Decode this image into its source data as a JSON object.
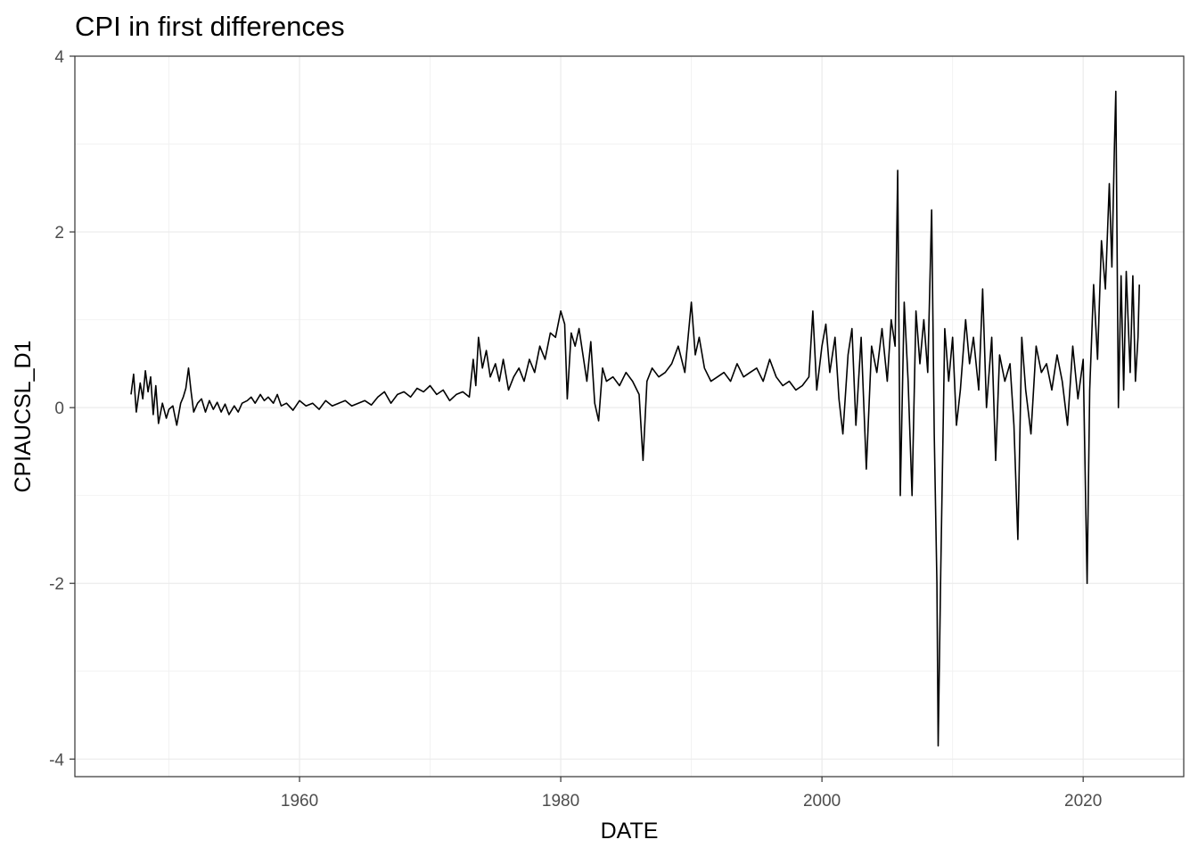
{
  "chart_data": {
    "type": "line",
    "title": "CPI in first differences",
    "xlabel": "DATE",
    "ylabel": "CPIAUCSL_D1",
    "xlim": [
      1942.8,
      2027.7
    ],
    "ylim": [
      -4.2,
      4.0
    ],
    "x_ticks": [
      1960,
      1980,
      2000,
      2020
    ],
    "x_tick_labels": [
      "1960",
      "1980",
      "2000",
      "2020"
    ],
    "y_ticks": [
      -4,
      -2,
      0,
      2,
      4
    ],
    "y_tick_labels": [
      "-4",
      "-2",
      "0",
      "2",
      "4"
    ],
    "grid": true,
    "legend": "none",
    "line_color": "#000000",
    "series": [
      {
        "points": [
          [
            1947.1,
            0.15
          ],
          [
            1947.3,
            0.38
          ],
          [
            1947.5,
            -0.05
          ],
          [
            1947.8,
            0.28
          ],
          [
            1948.0,
            0.1
          ],
          [
            1948.2,
            0.42
          ],
          [
            1948.4,
            0.18
          ],
          [
            1948.6,
            0.35
          ],
          [
            1948.8,
            -0.08
          ],
          [
            1949.0,
            0.25
          ],
          [
            1949.2,
            -0.18
          ],
          [
            1949.5,
            0.05
          ],
          [
            1949.8,
            -0.12
          ],
          [
            1950.0,
            -0.02
          ],
          [
            1950.3,
            0.02
          ],
          [
            1950.6,
            -0.2
          ],
          [
            1950.9,
            0.05
          ],
          [
            1951.1,
            0.12
          ],
          [
            1951.3,
            0.22
          ],
          [
            1951.5,
            0.45
          ],
          [
            1951.7,
            0.18
          ],
          [
            1951.9,
            -0.05
          ],
          [
            1952.2,
            0.05
          ],
          [
            1952.5,
            0.1
          ],
          [
            1952.8,
            -0.05
          ],
          [
            1953.1,
            0.08
          ],
          [
            1953.4,
            -0.02
          ],
          [
            1953.7,
            0.06
          ],
          [
            1954.0,
            -0.05
          ],
          [
            1954.3,
            0.04
          ],
          [
            1954.6,
            -0.08
          ],
          [
            1955.0,
            0.02
          ],
          [
            1955.3,
            -0.05
          ],
          [
            1955.6,
            0.05
          ],
          [
            1956.0,
            0.08
          ],
          [
            1956.3,
            0.12
          ],
          [
            1956.6,
            0.05
          ],
          [
            1957.0,
            0.15
          ],
          [
            1957.3,
            0.08
          ],
          [
            1957.6,
            0.12
          ],
          [
            1958.0,
            0.05
          ],
          [
            1958.3,
            0.15
          ],
          [
            1958.6,
            0.02
          ],
          [
            1959.0,
            0.05
          ],
          [
            1959.5,
            -0.03
          ],
          [
            1960.0,
            0.08
          ],
          [
            1960.5,
            0.02
          ],
          [
            1961.0,
            0.05
          ],
          [
            1961.5,
            -0.02
          ],
          [
            1962.0,
            0.08
          ],
          [
            1962.5,
            0.02
          ],
          [
            1963.0,
            0.05
          ],
          [
            1963.5,
            0.08
          ],
          [
            1964.0,
            0.02
          ],
          [
            1964.5,
            0.05
          ],
          [
            1965.0,
            0.08
          ],
          [
            1965.5,
            0.03
          ],
          [
            1966.0,
            0.12
          ],
          [
            1966.5,
            0.18
          ],
          [
            1967.0,
            0.05
          ],
          [
            1967.5,
            0.15
          ],
          [
            1968.0,
            0.18
          ],
          [
            1968.5,
            0.12
          ],
          [
            1969.0,
            0.22
          ],
          [
            1969.5,
            0.18
          ],
          [
            1970.0,
            0.25
          ],
          [
            1970.5,
            0.15
          ],
          [
            1971.0,
            0.2
          ],
          [
            1971.5,
            0.08
          ],
          [
            1972.0,
            0.15
          ],
          [
            1972.5,
            0.18
          ],
          [
            1973.0,
            0.12
          ],
          [
            1973.3,
            0.55
          ],
          [
            1973.5,
            0.25
          ],
          [
            1973.7,
            0.8
          ],
          [
            1974.0,
            0.45
          ],
          [
            1974.3,
            0.65
          ],
          [
            1974.6,
            0.35
          ],
          [
            1975.0,
            0.5
          ],
          [
            1975.3,
            0.3
          ],
          [
            1975.6,
            0.55
          ],
          [
            1976.0,
            0.2
          ],
          [
            1976.4,
            0.35
          ],
          [
            1976.8,
            0.45
          ],
          [
            1977.2,
            0.3
          ],
          [
            1977.6,
            0.55
          ],
          [
            1978.0,
            0.4
          ],
          [
            1978.4,
            0.7
          ],
          [
            1978.8,
            0.55
          ],
          [
            1979.2,
            0.85
          ],
          [
            1979.6,
            0.8
          ],
          [
            1980.0,
            1.1
          ],
          [
            1980.3,
            0.95
          ],
          [
            1980.5,
            0.1
          ],
          [
            1980.8,
            0.85
          ],
          [
            1981.1,
            0.7
          ],
          [
            1981.4,
            0.9
          ],
          [
            1981.7,
            0.6
          ],
          [
            1982.0,
            0.3
          ],
          [
            1982.3,
            0.75
          ],
          [
            1982.6,
            0.05
          ],
          [
            1982.9,
            -0.15
          ],
          [
            1983.2,
            0.45
          ],
          [
            1983.5,
            0.3
          ],
          [
            1984.0,
            0.35
          ],
          [
            1984.5,
            0.25
          ],
          [
            1985.0,
            0.4
          ],
          [
            1985.5,
            0.3
          ],
          [
            1986.0,
            0.15
          ],
          [
            1986.3,
            -0.6
          ],
          [
            1986.6,
            0.3
          ],
          [
            1987.0,
            0.45
          ],
          [
            1987.5,
            0.35
          ],
          [
            1988.0,
            0.4
          ],
          [
            1988.5,
            0.5
          ],
          [
            1989.0,
            0.7
          ],
          [
            1989.5,
            0.4
          ],
          [
            1990.0,
            1.2
          ],
          [
            1990.3,
            0.6
          ],
          [
            1990.6,
            0.8
          ],
          [
            1991.0,
            0.45
          ],
          [
            1991.5,
            0.3
          ],
          [
            1992.0,
            0.35
          ],
          [
            1992.5,
            0.4
          ],
          [
            1993.0,
            0.3
          ],
          [
            1993.5,
            0.5
          ],
          [
            1994.0,
            0.35
          ],
          [
            1994.5,
            0.4
          ],
          [
            1995.0,
            0.45
          ],
          [
            1995.5,
            0.3
          ],
          [
            1996.0,
            0.55
          ],
          [
            1996.5,
            0.35
          ],
          [
            1997.0,
            0.25
          ],
          [
            1997.5,
            0.3
          ],
          [
            1998.0,
            0.2
          ],
          [
            1998.5,
            0.25
          ],
          [
            1999.0,
            0.35
          ],
          [
            1999.3,
            1.1
          ],
          [
            1999.6,
            0.2
          ],
          [
            2000.0,
            0.7
          ],
          [
            2000.3,
            0.95
          ],
          [
            2000.6,
            0.4
          ],
          [
            2001.0,
            0.8
          ],
          [
            2001.3,
            0.1
          ],
          [
            2001.6,
            -0.3
          ],
          [
            2002.0,
            0.6
          ],
          [
            2002.3,
            0.9
          ],
          [
            2002.6,
            -0.2
          ],
          [
            2003.0,
            0.8
          ],
          [
            2003.4,
            -0.7
          ],
          [
            2003.8,
            0.7
          ],
          [
            2004.2,
            0.4
          ],
          [
            2004.6,
            0.9
          ],
          [
            2005.0,
            0.3
          ],
          [
            2005.3,
            1.0
          ],
          [
            2005.6,
            0.7
          ],
          [
            2005.8,
            2.7
          ],
          [
            2006.0,
            -1.0
          ],
          [
            2006.3,
            1.2
          ],
          [
            2006.6,
            0.3
          ],
          [
            2006.9,
            -1.0
          ],
          [
            2007.2,
            1.1
          ],
          [
            2007.5,
            0.5
          ],
          [
            2007.8,
            1.0
          ],
          [
            2008.1,
            0.4
          ],
          [
            2008.4,
            2.25
          ],
          [
            2008.6,
            -0.3
          ],
          [
            2008.8,
            -2.0
          ],
          [
            2008.9,
            -3.85
          ],
          [
            2009.1,
            -1.8
          ],
          [
            2009.4,
            0.9
          ],
          [
            2009.7,
            0.3
          ],
          [
            2010.0,
            0.8
          ],
          [
            2010.3,
            -0.2
          ],
          [
            2010.6,
            0.2
          ],
          [
            2011.0,
            1.0
          ],
          [
            2011.3,
            0.5
          ],
          [
            2011.6,
            0.8
          ],
          [
            2012.0,
            0.2
          ],
          [
            2012.3,
            1.35
          ],
          [
            2012.6,
            0.0
          ],
          [
            2013.0,
            0.8
          ],
          [
            2013.3,
            -0.6
          ],
          [
            2013.6,
            0.6
          ],
          [
            2014.0,
            0.3
          ],
          [
            2014.4,
            0.5
          ],
          [
            2014.7,
            -0.2
          ],
          [
            2015.0,
            -1.5
          ],
          [
            2015.3,
            0.8
          ],
          [
            2015.6,
            0.2
          ],
          [
            2016.0,
            -0.3
          ],
          [
            2016.4,
            0.7
          ],
          [
            2016.8,
            0.4
          ],
          [
            2017.2,
            0.5
          ],
          [
            2017.6,
            0.2
          ],
          [
            2018.0,
            0.6
          ],
          [
            2018.4,
            0.3
          ],
          [
            2018.8,
            -0.2
          ],
          [
            2019.2,
            0.7
          ],
          [
            2019.6,
            0.1
          ],
          [
            2020.0,
            0.55
          ],
          [
            2020.2,
            -1.15
          ],
          [
            2020.3,
            -2.0
          ],
          [
            2020.5,
            0.2
          ],
          [
            2020.8,
            1.4
          ],
          [
            2021.1,
            0.55
          ],
          [
            2021.4,
            1.9
          ],
          [
            2021.7,
            1.35
          ],
          [
            2022.0,
            2.55
          ],
          [
            2022.2,
            1.6
          ],
          [
            2022.4,
            3.0
          ],
          [
            2022.5,
            3.6
          ],
          [
            2022.7,
            0.0
          ],
          [
            2022.9,
            1.5
          ],
          [
            2023.1,
            0.2
          ],
          [
            2023.3,
            1.55
          ],
          [
            2023.6,
            0.4
          ],
          [
            2023.8,
            1.5
          ],
          [
            2024.0,
            0.3
          ],
          [
            2024.2,
            0.8
          ],
          [
            2024.3,
            1.4
          ]
        ]
      }
    ]
  }
}
